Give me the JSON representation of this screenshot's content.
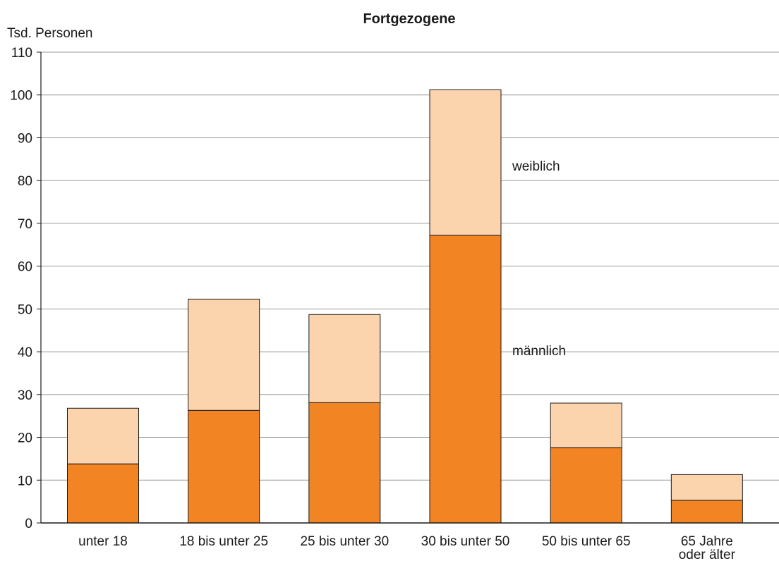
{
  "chart_data": {
    "type": "bar",
    "stacked": true,
    "title": "Fortgezogene",
    "ylabel": "Tsd. Personen",
    "xlabel": "",
    "ylim": [
      0,
      110
    ],
    "yticks": [
      0,
      10,
      20,
      30,
      40,
      50,
      60,
      70,
      80,
      90,
      100,
      110
    ],
    "grid": true,
    "categories": [
      "unter 18",
      "18 bis unter 25",
      "25 bis unter 30",
      "30 bis unter 50",
      "50 bis unter 65",
      "65 Jahre oder älter"
    ],
    "series": [
      {
        "name": "männlich",
        "color": "#f28424",
        "values": [
          13.8,
          26.3,
          28.1,
          67.2,
          17.6,
          5.3
        ]
      },
      {
        "name": "weiblich",
        "color": "#fbd3ad",
        "values": [
          13.0,
          26.0,
          20.6,
          34.0,
          10.4,
          6.0
        ]
      }
    ],
    "legend": "direct labels right of the 30 bis unter 50 bar"
  }
}
